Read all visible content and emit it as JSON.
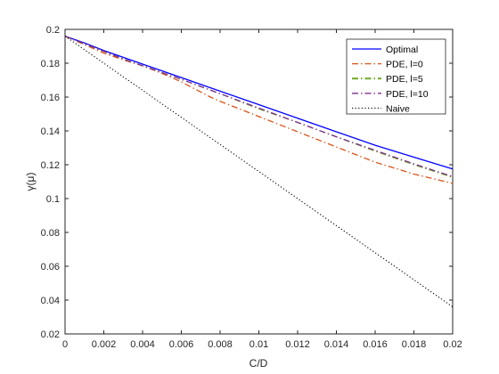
{
  "chart_data": {
    "type": "line",
    "xlabel": "C/D",
    "ylabel": "γ(μ)",
    "xlim": [
      0,
      0.02
    ],
    "ylim": [
      0.02,
      0.2
    ],
    "grid": false,
    "legend_placement": "top-right",
    "x_ticks": [
      "0",
      "0.002",
      "0.004",
      "0.006",
      "0.008",
      "0.01",
      "0.012",
      "0.014",
      "0.016",
      "0.018",
      "0.02"
    ],
    "y_ticks": [
      "0.02",
      "0.04",
      "0.06",
      "0.08",
      "0.1",
      "0.12",
      "0.14",
      "0.16",
      "0.18",
      "0.2"
    ],
    "series": [
      {
        "name": "Optimal",
        "color": "#0000ff",
        "style": "solid",
        "x": [
          0,
          0.001,
          0.002,
          0.003,
          0.004,
          0.006,
          0.008,
          0.01,
          0.012,
          0.014,
          0.016,
          0.018,
          0.02
        ],
        "y": [
          0.196,
          0.192,
          0.1875,
          0.1835,
          0.1795,
          0.1715,
          0.1635,
          0.1555,
          0.1475,
          0.1395,
          0.1315,
          0.1245,
          0.1175
        ]
      },
      {
        "name": "PDE, l=0",
        "color": "#d95319",
        "style": "dashdot",
        "x": [
          0,
          0.001,
          0.002,
          0.003,
          0.004,
          0.005,
          0.006,
          0.007,
          0.0075,
          0.008,
          0.01,
          0.012,
          0.014,
          0.016,
          0.018,
          0.02
        ],
        "y": [
          0.196,
          0.191,
          0.186,
          0.182,
          0.1785,
          0.174,
          0.169,
          0.163,
          0.16,
          0.1575,
          0.1485,
          0.1395,
          0.1305,
          0.1215,
          0.1145,
          0.109
        ]
      },
      {
        "name": "PDE, l=5",
        "color": "#77ac30",
        "style": "dashdot",
        "x": [
          0,
          0.001,
          0.002,
          0.003,
          0.004,
          0.006,
          0.008,
          0.01,
          0.012,
          0.014,
          0.016,
          0.018,
          0.02
        ],
        "y": [
          0.196,
          0.1915,
          0.187,
          0.1825,
          0.1785,
          0.1705,
          0.162,
          0.153,
          0.145,
          0.1365,
          0.128,
          0.12,
          0.1125
        ]
      },
      {
        "name": "PDE, l=10",
        "color": "#7e2f8e",
        "style": "dashdot",
        "x": [
          0,
          0.001,
          0.002,
          0.003,
          0.004,
          0.006,
          0.008,
          0.01,
          0.012,
          0.014,
          0.016,
          0.018,
          0.02
        ],
        "y": [
          0.196,
          0.1915,
          0.187,
          0.1825,
          0.1785,
          0.1705,
          0.162,
          0.1535,
          0.145,
          0.1365,
          0.1285,
          0.1205,
          0.113
        ]
      },
      {
        "name": "Naive",
        "color": "#000000",
        "style": "dotted",
        "x": [
          0,
          0.002,
          0.004,
          0.006,
          0.008,
          0.01,
          0.012,
          0.014,
          0.016,
          0.018,
          0.02
        ],
        "y": [
          0.196,
          0.18,
          0.164,
          0.148,
          0.132,
          0.116,
          0.1,
          0.084,
          0.068,
          0.052,
          0.036
        ]
      }
    ]
  }
}
